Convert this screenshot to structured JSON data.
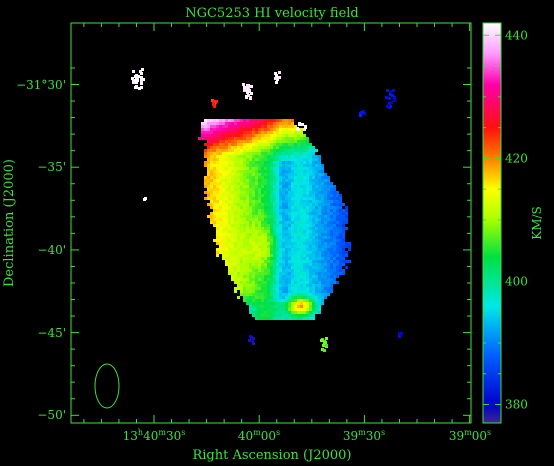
{
  "chart_data": {
    "type": "heatmap",
    "title": "NGC5253   HI velocity field",
    "xlabel": "Right Ascension (J2000)",
    "ylabel": "Declination (J2000)",
    "colorbar_label": "KM/S",
    "x_ticks": [
      {
        "label": "13h40m30s",
        "parts": [
          "13",
          "h",
          "40",
          "m",
          "30",
          "s"
        ]
      },
      {
        "label": "40m00s",
        "parts": [
          "",
          "",
          "40",
          "m",
          "00",
          "s"
        ]
      },
      {
        "label": "39m30s",
        "parts": [
          "",
          "",
          "39",
          "m",
          "30",
          "s"
        ]
      },
      {
        "label": "39m00s",
        "parts": [
          "",
          "",
          "39",
          "m",
          "00",
          "s"
        ]
      }
    ],
    "y_ticks": [
      "−31°30'",
      "−35'",
      "−40'",
      "−45'",
      "−50'"
    ],
    "colorbar": {
      "min": 377,
      "max": 442,
      "ticks": [
        {
          "value": 440,
          "label": "440"
        },
        {
          "value": 420,
          "label": "420"
        },
        {
          "value": 400,
          "label": "400"
        },
        {
          "value": 380,
          "label": "380"
        }
      ],
      "stops": [
        {
          "value": 377,
          "color": "#3a2a8a"
        },
        {
          "value": 380,
          "color": "#0000cc"
        },
        {
          "value": 388,
          "color": "#0060ff"
        },
        {
          "value": 396,
          "color": "#00e8e8"
        },
        {
          "value": 404,
          "color": "#00e040"
        },
        {
          "value": 410,
          "color": "#a8ff00"
        },
        {
          "value": 415,
          "color": "#ffff00"
        },
        {
          "value": 420,
          "color": "#ff8000"
        },
        {
          "value": 425,
          "color": "#ff1010"
        },
        {
          "value": 432,
          "color": "#ff00aa"
        },
        {
          "value": 437,
          "color": "#ff99ff"
        },
        {
          "value": 442,
          "color": "#ffffff"
        }
      ]
    },
    "beam_shown": true,
    "grid": false
  },
  "colors": {
    "axes": "#3fe03f",
    "background": "#000000"
  }
}
